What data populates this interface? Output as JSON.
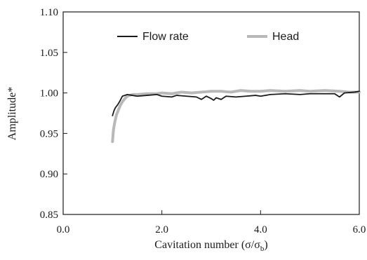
{
  "chart_data": {
    "type": "line",
    "title": "",
    "xlabel": "Cavitation number (σ/σ",
    "xlabel_sub": "b",
    "xlabel_close": ")",
    "ylabel": "Amplitude*",
    "xlim": [
      0.0,
      6.0
    ],
    "ylim": [
      0.85,
      1.1
    ],
    "xticks": [
      "0.0",
      "2.0",
      "4.0",
      "6.0"
    ],
    "xtick_values": [
      0,
      2,
      4,
      6
    ],
    "yticks": [
      "0.85",
      "0.90",
      "0.95",
      "1.00",
      "1.05",
      "1.10"
    ],
    "ytick_values": [
      0.85,
      0.9,
      0.95,
      1.0,
      1.05,
      1.1
    ],
    "grid": false,
    "legend_position": "top",
    "series": [
      {
        "name": "Flow rate",
        "color": "#1a1a1a",
        "x": [
          1.0,
          1.03,
          1.06,
          1.1,
          1.15,
          1.2,
          1.3,
          1.4,
          1.5,
          1.7,
          1.9,
          2.0,
          2.2,
          2.3,
          2.5,
          2.7,
          2.8,
          2.9,
          3.0,
          3.05,
          3.1,
          3.2,
          3.3,
          3.5,
          3.7,
          3.9,
          4.0,
          4.2,
          4.5,
          4.8,
          5.0,
          5.3,
          5.5,
          5.6,
          5.7,
          5.9,
          6.0
        ],
        "y": [
          0.972,
          0.978,
          0.982,
          0.985,
          0.99,
          0.996,
          0.998,
          0.997,
          0.996,
          0.997,
          0.998,
          0.996,
          0.995,
          0.997,
          0.996,
          0.995,
          0.992,
          0.996,
          0.993,
          0.991,
          0.994,
          0.992,
          0.996,
          0.995,
          0.996,
          0.997,
          0.996,
          0.998,
          0.999,
          0.998,
          0.999,
          0.999,
          0.999,
          0.995,
          1.0,
          1.001,
          1.002
        ]
      },
      {
        "name": "Head",
        "color": "#b8b8b8",
        "x": [
          1.0,
          1.02,
          1.05,
          1.08,
          1.12,
          1.16,
          1.2,
          1.25,
          1.3,
          1.4,
          1.5,
          1.7,
          1.9,
          2.0,
          2.2,
          2.4,
          2.6,
          2.8,
          3.0,
          3.2,
          3.4,
          3.6,
          3.8,
          4.0,
          4.2,
          4.5,
          4.8,
          5.0,
          5.3,
          5.6,
          5.8,
          6.0
        ],
        "y": [
          0.94,
          0.955,
          0.965,
          0.973,
          0.979,
          0.985,
          0.989,
          0.993,
          0.996,
          0.998,
          0.998,
          0.999,
          0.999,
          1.0,
          0.999,
          1.001,
          1.0,
          1.001,
          1.002,
          1.002,
          1.001,
          1.003,
          1.002,
          1.002,
          1.003,
          1.002,
          1.003,
          1.002,
          1.003,
          1.002,
          1.001,
          1.001
        ]
      }
    ]
  }
}
